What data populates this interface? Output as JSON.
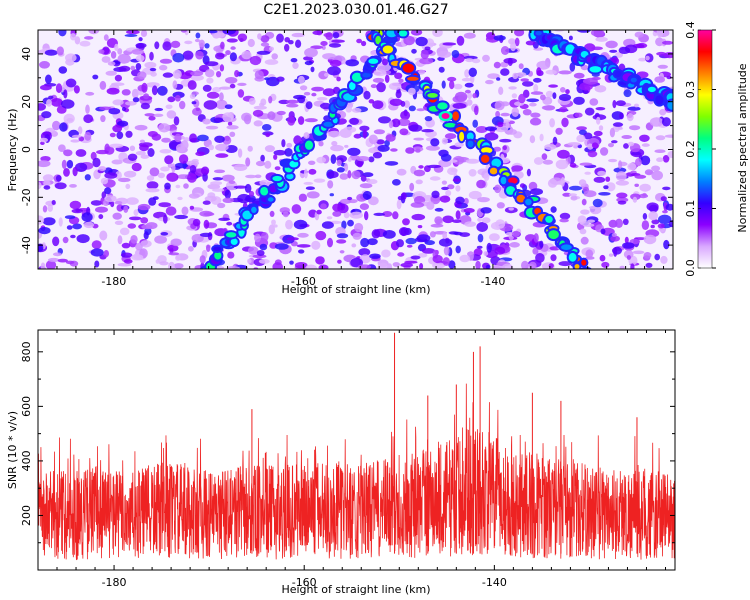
{
  "title": "C2E1.2023.030.01.46.G27",
  "chart_data": [
    {
      "type": "heatmap",
      "title": "C2E1.2023.030.01.46.G27",
      "xlabel": "Height of straight line (km)",
      "ylabel": "Frequency (Hz)",
      "xlim": [
        -188,
        -121
      ],
      "ylim": [
        -50,
        50
      ],
      "x_ticks": [
        -180,
        -160,
        -140
      ],
      "y_ticks": [
        -40,
        -20,
        0,
        20,
        40
      ],
      "colorbar": {
        "label": "Normalized spectral amplitude",
        "range": [
          0,
          0.4
        ],
        "ticks": [
          0.0,
          0.1,
          0.2,
          0.3,
          0.4
        ],
        "tick_labels": [
          "0.0",
          "0.1",
          "0.2",
          "0.3",
          "0.4"
        ],
        "colormap": [
          "#ffffff",
          "#d9a8ff",
          "#8b00ff",
          "#3300ff",
          "#0080ff",
          "#00ffff",
          "#00ff80",
          "#80ff00",
          "#ffff00",
          "#ff8000",
          "#ff0000",
          "#ff00a0"
        ]
      },
      "ridges": [
        {
          "x": [
            -170,
            -150
          ],
          "y": [
            -50,
            50
          ],
          "peak": 0.22
        },
        {
          "x": [
            -153,
            -130
          ],
          "y": [
            50,
            -50
          ],
          "peak": 0.38
        },
        {
          "x": [
            -136,
            -121
          ],
          "y": [
            50,
            20
          ],
          "peak": 0.2
        }
      ],
      "peak_point": {
        "x": -145,
        "y": 14,
        "value": 0.4
      }
    },
    {
      "type": "line",
      "xlabel": "Height of straight line (km)",
      "ylabel": "SNR (10 * v/v)",
      "xlim": [
        -188,
        -121
      ],
      "ylim": [
        0,
        880
      ],
      "x_ticks": [
        -180,
        -160,
        -140
      ],
      "y_ticks": [
        200,
        400,
        600,
        800
      ],
      "series": [
        {
          "color": "#ee2222",
          "x": [
            -188,
            -186,
            -184,
            -182,
            -180,
            -178,
            -176,
            -174,
            -172,
            -170,
            -168,
            -166,
            -164,
            -162,
            -160,
            -158,
            -156,
            -154,
            -152,
            -150,
            -148,
            -146,
            -144,
            -142,
            -140,
            -138,
            -136,
            -134,
            -132,
            -130,
            -128,
            -126,
            -124,
            -122,
            -121
          ],
          "y": [
            230,
            250,
            240,
            260,
            250,
            240,
            260,
            265,
            255,
            245,
            250,
            260,
            255,
            260,
            265,
            270,
            265,
            260,
            270,
            280,
            290,
            310,
            330,
            360,
            330,
            300,
            290,
            280,
            270,
            260,
            255,
            250,
            245,
            240,
            240
          ],
          "peaks": [
            [
              -150.5,
              870
            ],
            [
              -141.5,
              820
            ],
            [
              -142.2,
              800
            ],
            [
              -144,
              680
            ],
            [
              -136,
              650
            ],
            [
              -133,
              620
            ],
            [
              -147,
              640
            ],
            [
              -125,
              560
            ],
            [
              -165.5,
              590
            ]
          ]
        }
      ]
    }
  ]
}
